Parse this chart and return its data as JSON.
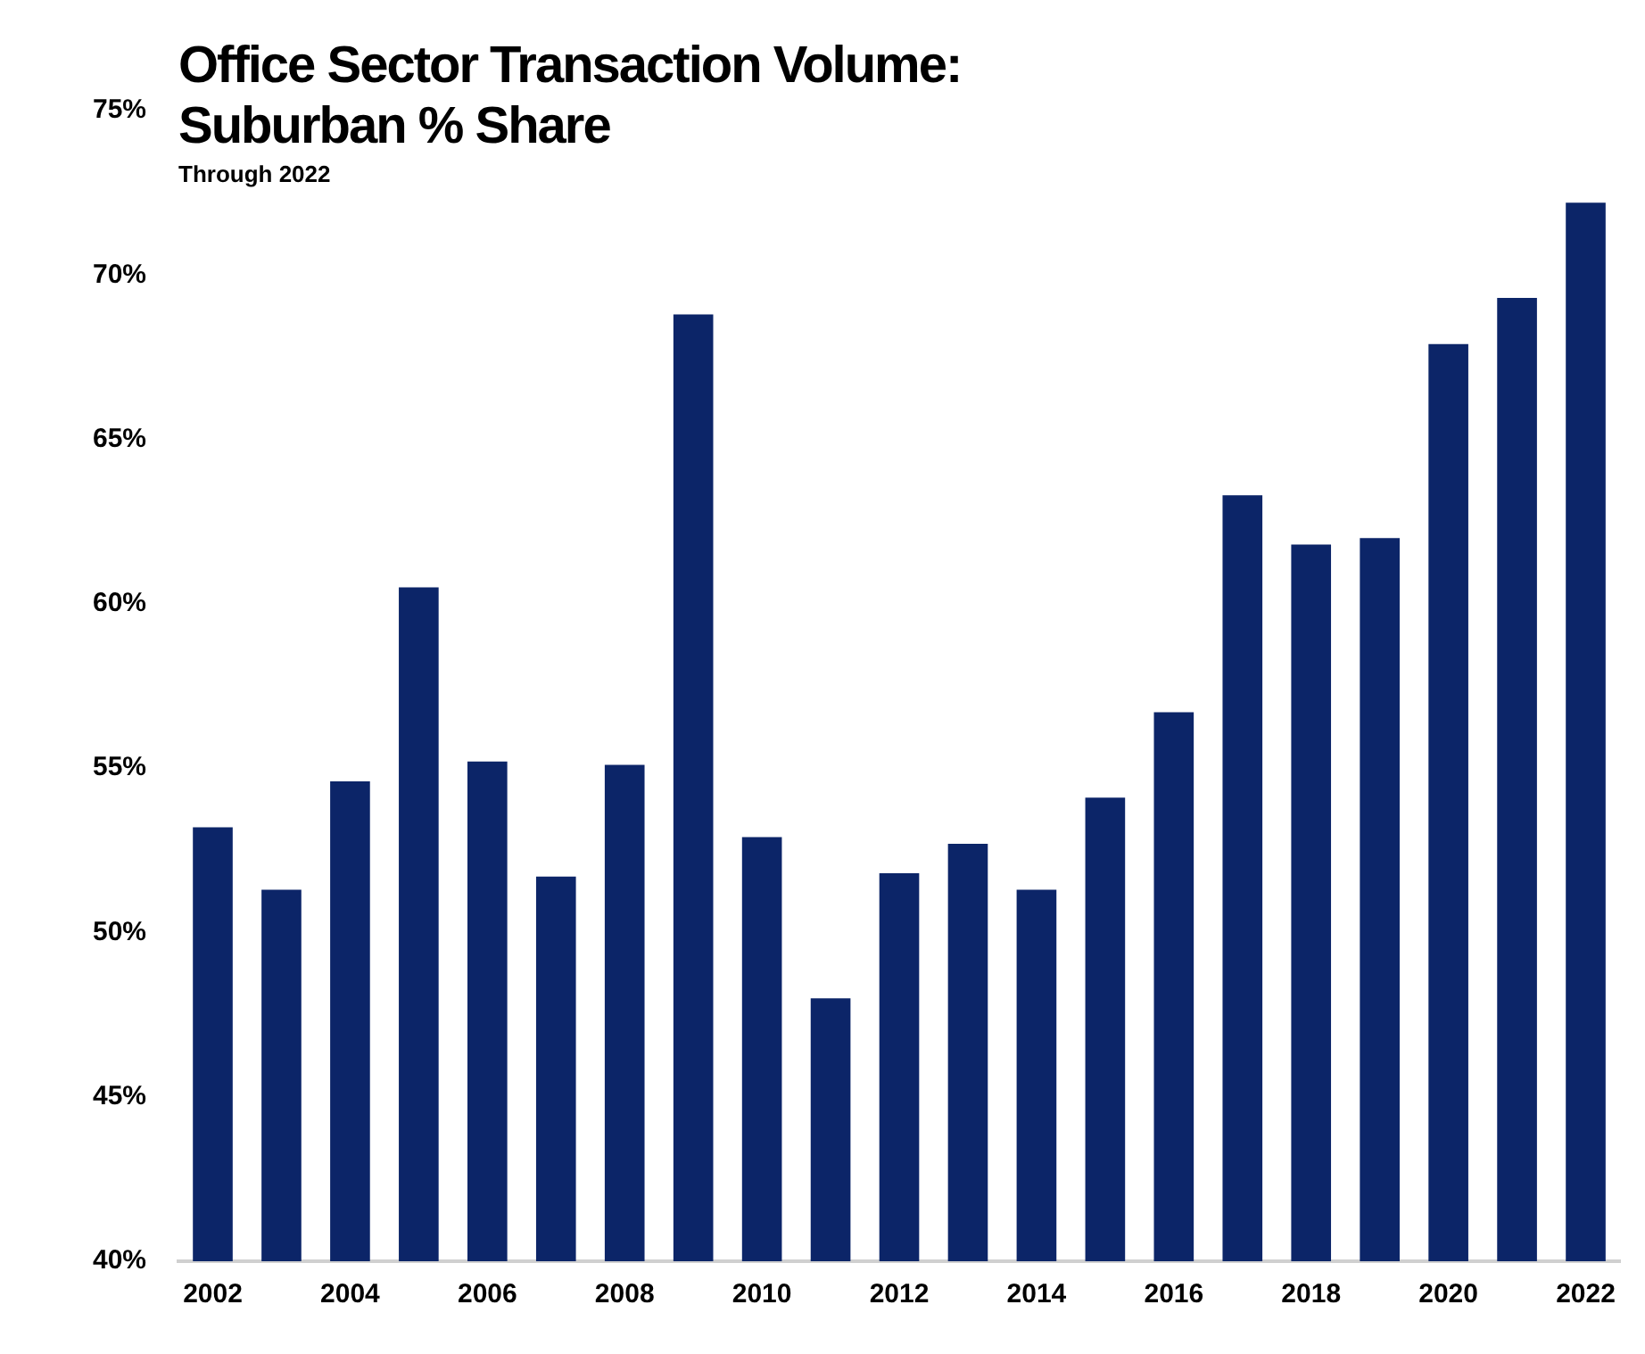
{
  "chart_data": {
    "type": "bar",
    "title": "Office Sector Transaction Volume:\nSuburban % Share",
    "subtitle": "Through 2022",
    "categories": [
      "2002",
      null,
      "2004",
      null,
      "2006",
      null,
      "2008",
      null,
      "2010",
      null,
      "2012",
      null,
      "2014",
      null,
      "2016",
      null,
      "2018",
      null,
      "2020",
      null,
      "2022"
    ],
    "values": [
      53.2,
      51.3,
      54.6,
      60.5,
      55.2,
      51.7,
      55.1,
      68.8,
      52.9,
      48.0,
      51.8,
      52.7,
      51.3,
      54.1,
      56.7,
      63.3,
      61.8,
      62.0,
      67.9,
      69.3,
      72.2
    ],
    "color": "#0c2568",
    "ylim": [
      40,
      75
    ],
    "yticks": [
      {
        "value": 40,
        "label": "40%"
      },
      {
        "value": 45,
        "label": "45%"
      },
      {
        "value": 50,
        "label": "50%"
      },
      {
        "value": 55,
        "label": "55%"
      },
      {
        "value": 60,
        "label": "60%"
      },
      {
        "value": 65,
        "label": "65%"
      },
      {
        "value": 70,
        "label": "70%"
      },
      {
        "value": 75,
        "label": "75%"
      }
    ],
    "grid": false,
    "legend": false
  }
}
